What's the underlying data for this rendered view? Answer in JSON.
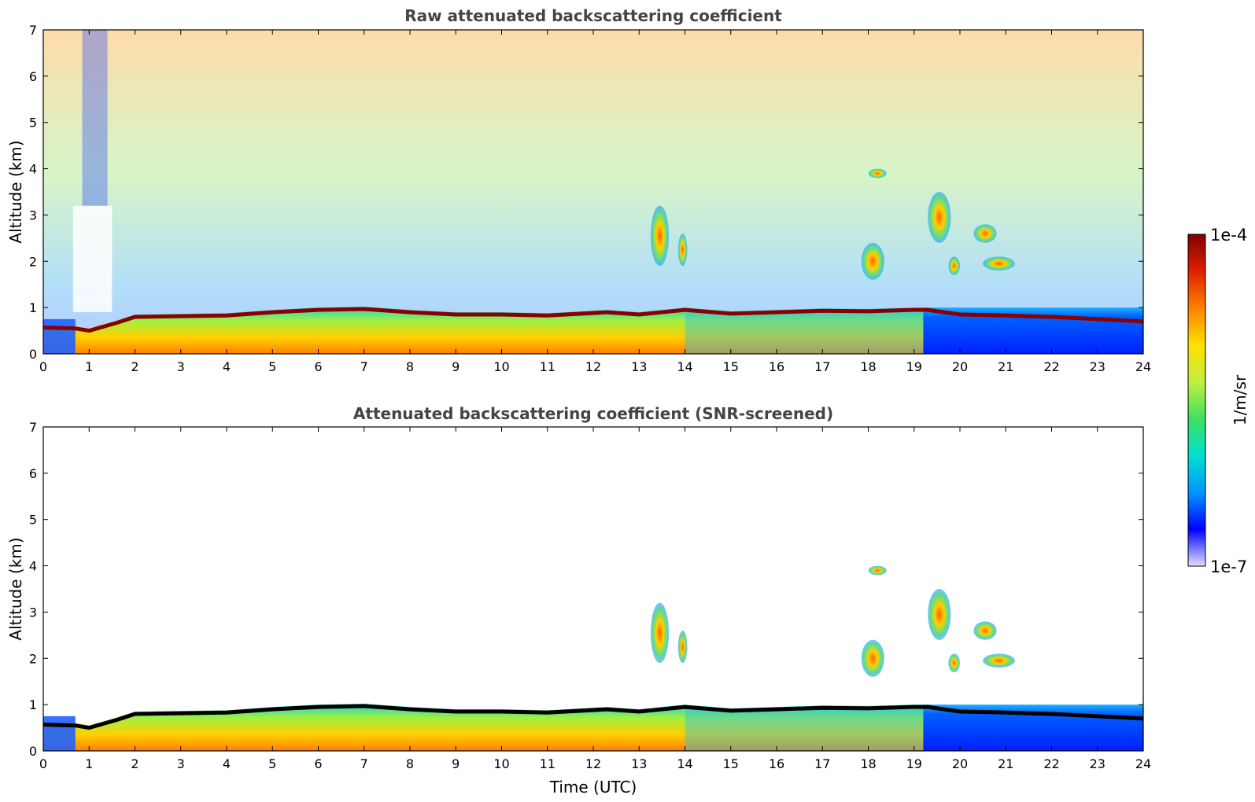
{
  "chart_data": [
    {
      "type": "heatmap",
      "title": "Raw attenuated backscattering coefficient",
      "xlabel": "",
      "ylabel": "Altitude (km)",
      "xlim": [
        0,
        24
      ],
      "ylim": [
        0,
        7
      ],
      "xticks": [
        "0",
        "1",
        "2",
        "3",
        "4",
        "5",
        "6",
        "7",
        "8",
        "9",
        "10",
        "11",
        "12",
        "13",
        "14",
        "15",
        "16",
        "17",
        "18",
        "19",
        "20",
        "21",
        "22",
        "23",
        "24"
      ],
      "yticks": [
        "0",
        "1",
        "2",
        "3",
        "4",
        "5",
        "6",
        "7"
      ],
      "screened": false
    },
    {
      "type": "heatmap",
      "title": "Attenuated backscattering coefficient (SNR-screened)",
      "xlabel": "Time (UTC)",
      "ylabel": "Altitude (km)",
      "xlim": [
        0,
        24
      ],
      "ylim": [
        0,
        7
      ],
      "xticks": [
        "0",
        "1",
        "2",
        "3",
        "4",
        "5",
        "6",
        "7",
        "8",
        "9",
        "10",
        "11",
        "12",
        "13",
        "14",
        "15",
        "16",
        "17",
        "18",
        "19",
        "20",
        "21",
        "22",
        "23",
        "24"
      ],
      "yticks": [
        "0",
        "1",
        "2",
        "3",
        "4",
        "5",
        "6",
        "7"
      ],
      "screened": true
    }
  ],
  "colorbar": {
    "label": "1/m/sr",
    "max_label": "1e-4",
    "min_label": "1e-7",
    "scale": "log",
    "colormap": [
      "#e0e0ff",
      "#0000ff",
      "#0096ff",
      "#00e0d0",
      "#40e060",
      "#c0f040",
      "#ffe000",
      "#ff8000",
      "#e02000",
      "#800000"
    ]
  },
  "features": {
    "boundary_layer_top_km": [
      {
        "t": 0.0,
        "h": 0.62
      },
      {
        "t": 0.7,
        "h": 0.6
      },
      {
        "t": 1.0,
        "h": 0.55
      },
      {
        "t": 1.6,
        "h": 0.72
      },
      {
        "t": 2.0,
        "h": 0.85
      },
      {
        "t": 4.0,
        "h": 0.88
      },
      {
        "t": 5.0,
        "h": 0.95
      },
      {
        "t": 6.0,
        "h": 1.0
      },
      {
        "t": 7.0,
        "h": 1.02
      },
      {
        "t": 8.0,
        "h": 0.95
      },
      {
        "t": 9.0,
        "h": 0.9
      },
      {
        "t": 10.0,
        "h": 0.9
      },
      {
        "t": 11.0,
        "h": 0.88
      },
      {
        "t": 12.3,
        "h": 0.95
      },
      {
        "t": 13.0,
        "h": 0.9
      },
      {
        "t": 14.0,
        "h": 1.0
      },
      {
        "t": 15.0,
        "h": 0.92
      },
      {
        "t": 16.0,
        "h": 0.95
      },
      {
        "t": 17.0,
        "h": 0.98
      },
      {
        "t": 18.0,
        "h": 0.97
      },
      {
        "t": 19.0,
        "h": 1.0
      },
      {
        "t": 19.3,
        "h": 1.0
      },
      {
        "t": 20.0,
        "h": 0.9
      },
      {
        "t": 21.0,
        "h": 0.88
      },
      {
        "t": 22.0,
        "h": 0.85
      },
      {
        "t": 23.0,
        "h": 0.8
      },
      {
        "t": 24.0,
        "h": 0.75
      }
    ],
    "cloud_layers": [
      {
        "t0": 13.25,
        "t1": 13.65,
        "h0": 1.9,
        "h1": 3.2
      },
      {
        "t0": 13.85,
        "t1": 14.05,
        "h0": 1.9,
        "h1": 2.6
      },
      {
        "t0": 17.85,
        "t1": 18.35,
        "h0": 1.6,
        "h1": 2.4
      },
      {
        "t0": 18.0,
        "t1": 18.4,
        "h0": 3.8,
        "h1": 4.0
      },
      {
        "t0": 19.3,
        "t1": 19.8,
        "h0": 2.4,
        "h1": 3.5
      },
      {
        "t0": 19.75,
        "t1": 20.0,
        "h0": 1.7,
        "h1": 2.1
      },
      {
        "t0": 20.3,
        "t1": 20.8,
        "h0": 2.4,
        "h1": 2.8
      },
      {
        "t0": 20.5,
        "t1": 21.2,
        "h0": 1.8,
        "h1": 2.1
      }
    ]
  }
}
